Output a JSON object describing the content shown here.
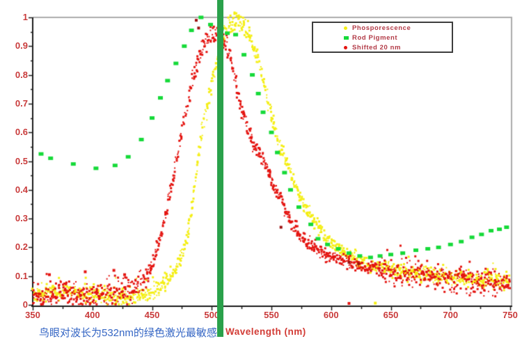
{
  "caption": {
    "text": "鸟眼对波长为532nm的绿色激光最敏感"
  },
  "chart_data": {
    "type": "scatter",
    "title": "",
    "xlabel": "Wavelength (nm)",
    "ylabel": "",
    "xlim": [
      350,
      750
    ],
    "ylim": [
      0,
      1
    ],
    "x_ticks": [
      350,
      400,
      450,
      500,
      550,
      600,
      650,
      700,
      750
    ],
    "y_ticks": [
      1,
      0.9,
      0.8,
      0.7,
      0.6,
      0.5,
      0.4,
      0.3,
      0.2,
      0.1,
      0
    ],
    "grid": "off",
    "legend_position": "top-right-inside",
    "marker_line": {
      "x": 507,
      "color": "#2aa14b"
    },
    "colors": {
      "axis_text": "#c93b3b",
      "axis_line": "#1c1c1c",
      "border": "#ababab",
      "caption": "#3566c4",
      "dark_outlier": "#9c1010"
    },
    "series": [
      {
        "name": "Phosporescence",
        "marker": "dot",
        "color": "#f4ee14",
        "render": "dense",
        "tail_extra": 0.002,
        "points": [
          [
            350,
            0.045
          ],
          [
            357,
            0.04
          ],
          [
            364,
            0.05
          ],
          [
            371,
            0.04
          ],
          [
            379,
            0.046
          ],
          [
            388,
            0.04
          ],
          [
            397,
            0.038
          ],
          [
            406,
            0.034
          ],
          [
            415,
            0.032
          ],
          [
            424,
            0.03
          ],
          [
            433,
            0.028
          ],
          [
            441,
            0.032
          ],
          [
            448,
            0.04
          ],
          [
            455,
            0.052
          ],
          [
            460,
            0.068
          ],
          [
            465,
            0.092
          ],
          [
            470,
            0.13
          ],
          [
            474,
            0.16
          ],
          [
            478,
            0.21
          ],
          [
            482,
            0.3
          ],
          [
            486,
            0.42
          ],
          [
            490,
            0.55
          ],
          [
            494,
            0.65
          ],
          [
            498,
            0.73
          ],
          [
            502,
            0.81
          ],
          [
            506,
            0.88
          ],
          [
            510,
            0.93
          ],
          [
            514,
            0.965
          ],
          [
            518,
            0.985
          ],
          [
            522,
            0.99
          ],
          [
            526,
            0.98
          ],
          [
            530,
            0.952
          ],
          [
            534,
            0.912
          ],
          [
            538,
            0.862
          ],
          [
            542,
            0.8
          ],
          [
            547,
            0.71
          ],
          [
            552,
            0.625
          ],
          [
            557,
            0.55
          ],
          [
            562,
            0.505
          ],
          [
            567,
            0.445
          ],
          [
            571,
            0.4
          ],
          [
            576,
            0.365
          ],
          [
            581,
            0.325
          ],
          [
            586,
            0.29
          ],
          [
            591,
            0.26
          ],
          [
            596,
            0.23
          ],
          [
            602,
            0.21
          ],
          [
            608,
            0.19
          ],
          [
            614,
            0.175
          ],
          [
            620,
            0.16
          ],
          [
            627,
            0.148
          ],
          [
            634,
            0.14
          ],
          [
            642,
            0.13
          ],
          [
            650,
            0.122
          ],
          [
            659,
            0.115
          ],
          [
            668,
            0.11
          ],
          [
            678,
            0.106
          ],
          [
            688,
            0.102
          ],
          [
            698,
            0.1
          ],
          [
            708,
            0.096
          ],
          [
            718,
            0.092
          ],
          [
            728,
            0.09
          ],
          [
            738,
            0.087
          ],
          [
            750,
            0.083
          ]
        ]
      },
      {
        "name": "Rod Pigment",
        "marker": "square",
        "color": "#16da39",
        "render": "sparse",
        "points": [
          [
            357,
            0.525
          ],
          [
            365,
            0.51
          ],
          [
            384,
            0.49
          ],
          [
            403,
            0.475
          ],
          [
            419,
            0.485
          ],
          [
            430,
            0.515
          ],
          [
            441,
            0.575
          ],
          [
            450,
            0.65
          ],
          [
            457,
            0.72
          ],
          [
            463,
            0.78
          ],
          [
            470,
            0.84
          ],
          [
            477,
            0.9
          ],
          [
            483,
            0.955
          ],
          [
            491,
            1.0
          ],
          [
            499,
            0.975
          ],
          [
            508,
            0.96
          ],
          [
            513,
            0.945
          ],
          [
            520,
            0.94
          ],
          [
            527,
            0.87
          ],
          [
            534,
            0.8
          ],
          [
            539,
            0.735
          ],
          [
            543,
            0.67
          ],
          [
            550,
            0.6
          ],
          [
            555,
            0.53
          ],
          [
            561,
            0.46
          ],
          [
            566,
            0.4
          ],
          [
            573,
            0.34
          ],
          [
            583,
            0.28
          ],
          [
            589,
            0.23
          ],
          [
            597,
            0.21
          ],
          [
            606,
            0.195
          ],
          [
            615,
            0.18
          ],
          [
            624,
            0.17
          ],
          [
            633,
            0.165
          ],
          [
            641,
            0.17
          ],
          [
            650,
            0.175
          ],
          [
            660,
            0.18
          ],
          [
            671,
            0.19
          ],
          [
            681,
            0.195
          ],
          [
            690,
            0.2
          ],
          [
            700,
            0.21
          ],
          [
            709,
            0.22
          ],
          [
            718,
            0.235
          ],
          [
            726,
            0.245
          ],
          [
            734,
            0.258
          ],
          [
            741,
            0.263
          ],
          [
            747,
            0.27
          ]
        ]
      },
      {
        "name": "Shifted 20 nm",
        "marker": "dot",
        "color": "#e41410",
        "render": "dense",
        "tail_extra": 0.009,
        "points": [
          [
            350,
            0.03
          ],
          [
            358,
            0.028
          ],
          [
            366,
            0.032
          ],
          [
            374,
            0.034
          ],
          [
            382,
            0.036
          ],
          [
            390,
            0.034
          ],
          [
            398,
            0.033
          ],
          [
            406,
            0.036
          ],
          [
            414,
            0.04
          ],
          [
            421,
            0.044
          ],
          [
            428,
            0.05
          ],
          [
            434,
            0.058
          ],
          [
            439,
            0.068
          ],
          [
            444,
            0.09
          ],
          [
            448,
            0.12
          ],
          [
            452,
            0.165
          ],
          [
            456,
            0.22
          ],
          [
            460,
            0.285
          ],
          [
            464,
            0.36
          ],
          [
            468,
            0.45
          ],
          [
            472,
            0.535
          ],
          [
            476,
            0.62
          ],
          [
            480,
            0.7
          ],
          [
            484,
            0.78
          ],
          [
            488,
            0.845
          ],
          [
            492,
            0.895
          ],
          [
            496,
            0.925
          ],
          [
            500,
            0.945
          ],
          [
            504,
            0.948
          ],
          [
            508,
            0.935
          ],
          [
            512,
            0.9
          ],
          [
            516,
            0.85
          ],
          [
            520,
            0.78
          ],
          [
            524,
            0.7
          ],
          [
            528,
            0.645
          ],
          [
            532,
            0.592
          ],
          [
            537,
            0.545
          ],
          [
            543,
            0.51
          ],
          [
            548,
            0.455
          ],
          [
            553,
            0.41
          ],
          [
            557,
            0.38
          ],
          [
            562,
            0.33
          ],
          [
            568,
            0.28
          ],
          [
            574,
            0.245
          ],
          [
            582,
            0.21
          ],
          [
            590,
            0.187
          ],
          [
            599,
            0.17
          ],
          [
            608,
            0.156
          ],
          [
            619,
            0.14
          ],
          [
            629,
            0.131
          ],
          [
            639,
            0.122
          ],
          [
            649,
            0.116
          ],
          [
            659,
            0.11
          ],
          [
            669,
            0.105
          ],
          [
            679,
            0.1
          ],
          [
            689,
            0.095
          ],
          [
            699,
            0.09
          ],
          [
            709,
            0.085
          ],
          [
            719,
            0.08
          ],
          [
            729,
            0.077
          ],
          [
            739,
            0.072
          ],
          [
            750,
            0.066
          ]
        ]
      }
    ],
    "extra_points": [
      {
        "x": 487,
        "v": 0.99,
        "color": "#9c1010"
      },
      {
        "x": 489,
        "v": 0.963,
        "color": "#9c1010"
      },
      {
        "x": 558,
        "v": 0.27,
        "color": "#9c1010"
      },
      {
        "x": 615,
        "v": 0.148,
        "color": "#9c1010"
      },
      {
        "x": 623,
        "v": 0.143,
        "color": "#9c1010"
      },
      {
        "x": 615,
        "v": 0.005,
        "color": "#e41410"
      },
      {
        "x": 637,
        "v": 0.006,
        "color": "#f4ee14"
      },
      {
        "x": 364,
        "v": 0.105,
        "color": "#e41410"
      },
      {
        "x": 394,
        "v": 0.115,
        "color": "#e41410"
      },
      {
        "x": 418,
        "v": 0.12,
        "color": "#e41410"
      },
      {
        "x": 427,
        "v": 0.105,
        "color": "#e41410"
      }
    ]
  }
}
